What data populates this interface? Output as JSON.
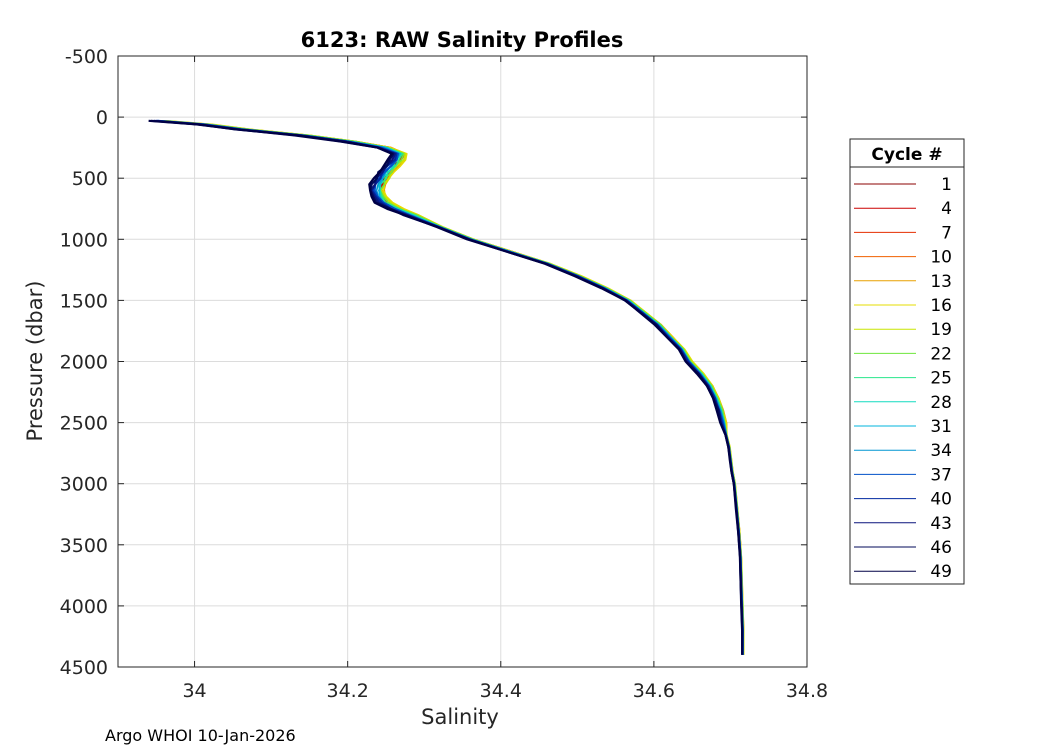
{
  "chart_data": {
    "type": "line",
    "title": "6123: RAW Salinity Profiles",
    "xlabel": "Salinity",
    "ylabel": "Pressure (dbar)",
    "xlim": [
      33.9,
      34.8
    ],
    "ylim": [
      -500,
      4500
    ],
    "y_reversed": true,
    "grid": true,
    "x_ticks": [
      34,
      34.2,
      34.4,
      34.6,
      34.8
    ],
    "x_tick_labels": [
      "34",
      "34.2",
      "34.4",
      "34.6",
      "34.8"
    ],
    "y_ticks": [
      -500,
      0,
      500,
      1000,
      1500,
      2000,
      2500,
      3000,
      3500,
      4000,
      4500
    ],
    "y_tick_labels": [
      "-500",
      "0",
      "500",
      "1000",
      "1500",
      "2000",
      "2500",
      "3000",
      "3500",
      "4000",
      "4500"
    ],
    "legend": {
      "title": "Cycle #",
      "placement": "right-outside",
      "entries": [
        "1",
        "4",
        "7",
        "10",
        "13",
        "16",
        "19",
        "22",
        "25",
        "28",
        "31",
        "34",
        "37",
        "40",
        "43",
        "46",
        "49"
      ],
      "colors": [
        "#8b0000",
        "#cc0000",
        "#e52e00",
        "#f06000",
        "#e8a000",
        "#e6dc00",
        "#c8e600",
        "#6ee63c",
        "#28e68c",
        "#14dcc0",
        "#00b4dc",
        "#0096d2",
        "#0050c8",
        "#0028a0",
        "#0a147d",
        "#000a5a",
        "#000046"
      ]
    },
    "mean_profile": {
      "pressure": [
        30,
        60,
        100,
        150,
        200,
        250,
        300,
        350,
        400,
        450,
        500,
        550,
        600,
        650,
        700,
        750,
        800,
        900,
        1000,
        1100,
        1200,
        1300,
        1400,
        1500,
        1600,
        1700,
        1800,
        1900,
        2000,
        2100,
        2200,
        2300,
        2400,
        2500,
        2600,
        2700,
        2800,
        2900,
        3000,
        3200,
        3400,
        3600,
        3800,
        4000,
        4200,
        4400
      ],
      "salinity": [
        33.95,
        34.01,
        34.06,
        34.14,
        34.2,
        34.245,
        34.265,
        34.262,
        34.255,
        34.248,
        34.243,
        34.238,
        34.236,
        34.238,
        34.245,
        34.26,
        34.28,
        34.32,
        34.36,
        34.41,
        34.46,
        34.5,
        34.535,
        34.565,
        34.585,
        34.605,
        34.62,
        34.635,
        34.645,
        34.66,
        34.672,
        34.68,
        34.686,
        34.69,
        34.694,
        34.698,
        34.7,
        34.702,
        34.705,
        34.708,
        34.711,
        34.713,
        34.714,
        34.715,
        34.716,
        34.716
      ]
    },
    "series": [
      {
        "name": "1",
        "salinity_offset": 0.006
      },
      {
        "name": "4",
        "salinity_offset": 0.008
      },
      {
        "name": "7",
        "salinity_offset": 0.01
      },
      {
        "name": "10",
        "salinity_offset": 0.009
      },
      {
        "name": "13",
        "salinity_offset": 0.011
      },
      {
        "name": "16",
        "salinity_offset": 0.012
      },
      {
        "name": "19",
        "salinity_offset": 0.01
      },
      {
        "name": "22",
        "salinity_offset": 0.008
      },
      {
        "name": "25",
        "salinity_offset": 0.006
      },
      {
        "name": "28",
        "salinity_offset": 0.004
      },
      {
        "name": "31",
        "salinity_offset": 0.003
      },
      {
        "name": "34",
        "salinity_offset": 0.001
      },
      {
        "name": "37",
        "salinity_offset": 0.0
      },
      {
        "name": "40",
        "salinity_offset": -0.002
      },
      {
        "name": "43",
        "salinity_offset": -0.004
      },
      {
        "name": "46",
        "salinity_offset": -0.006
      },
      {
        "name": "49",
        "salinity_offset": -0.008
      }
    ]
  },
  "footer": "Argo WHOI 10-Jan-2026"
}
